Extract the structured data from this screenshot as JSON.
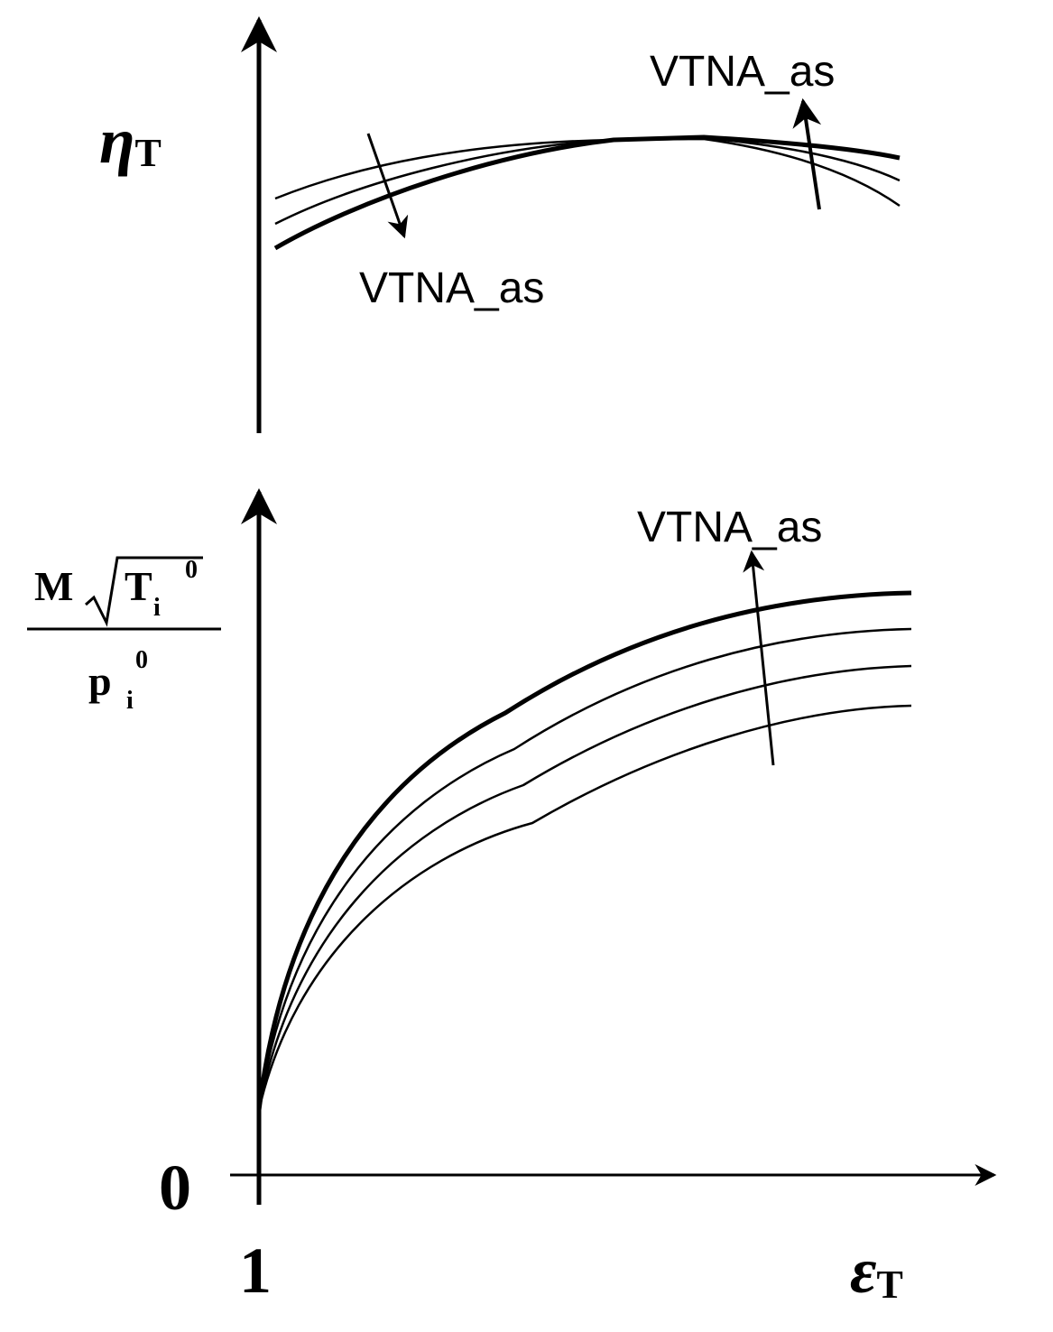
{
  "top_panel": {
    "y_label": {
      "symbol": "η",
      "subscript": "T"
    },
    "annotations": [
      "VTNA_as",
      "VTNA_as"
    ]
  },
  "bottom_panel": {
    "y_label": {
      "numerator": {
        "letter": "M",
        "radicand": "T",
        "subscript": "i",
        "superscript": "0"
      },
      "denominator": {
        "letter": "p",
        "subscript": "i",
        "superscript": "0"
      }
    },
    "annotation": "VTNA_as",
    "origin_label": "0",
    "x_start_label": "1",
    "x_label": {
      "symbol": "ε",
      "subscript": "T"
    }
  }
}
